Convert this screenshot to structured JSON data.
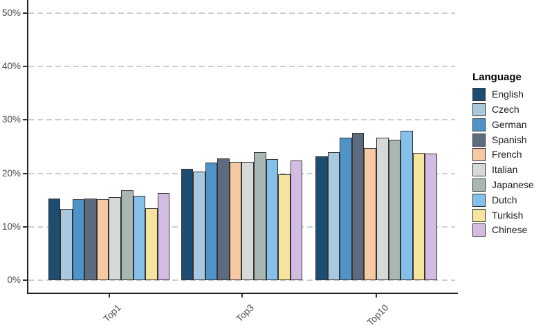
{
  "chart_data": {
    "type": "bar",
    "title": "",
    "xlabel": "",
    "ylabel": "",
    "categories": [
      "Top1",
      "Top3",
      "Top10"
    ],
    "series": [
      {
        "name": "English",
        "color": "#1e4d72",
        "values": [
          15.3,
          20.8,
          23.2
        ]
      },
      {
        "name": "Czech",
        "color": "#a9c9e0",
        "values": [
          13.4,
          20.3,
          24.0
        ]
      },
      {
        "name": "German",
        "color": "#4e94c9",
        "values": [
          15.2,
          22.0,
          26.7
        ]
      },
      {
        "name": "Spanish",
        "color": "#5c6b7e",
        "values": [
          15.3,
          22.8,
          27.6
        ]
      },
      {
        "name": "French",
        "color": "#f6c9a2",
        "values": [
          15.2,
          22.2,
          24.8
        ]
      },
      {
        "name": "Italian",
        "color": "#d5dad9",
        "values": [
          15.5,
          22.1,
          26.7
        ]
      },
      {
        "name": "Japanese",
        "color": "#a8b7b1",
        "values": [
          16.8,
          24.0,
          26.3
        ]
      },
      {
        "name": "Dutch",
        "color": "#85c0ea",
        "values": [
          15.8,
          22.7,
          28.0
        ]
      },
      {
        "name": "Turkish",
        "color": "#f5e49e",
        "values": [
          13.5,
          19.8,
          23.8
        ]
      },
      {
        "name": "Chinese",
        "color": "#d3bce2",
        "values": [
          16.3,
          22.4,
          23.7
        ]
      }
    ],
    "legend_title": "Language",
    "legend_position": "right",
    "y_tick_labels": [
      "0%",
      "10%",
      "20%",
      "30%",
      "40%",
      "50%"
    ],
    "ylim": [
      0,
      52.5
    ],
    "grid": "horizontal-dashed",
    "gridline_color": "#c7d1d1",
    "bar_outline_color": "#333333",
    "axis_color": "#1f1f1f"
  }
}
